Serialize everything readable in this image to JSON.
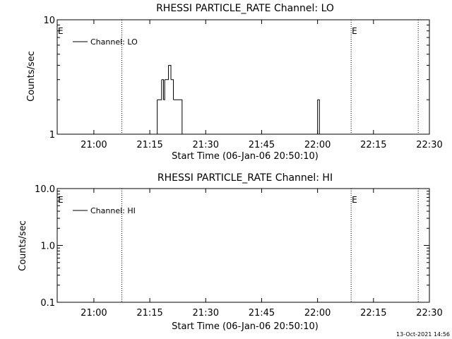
{
  "colors": {
    "background": "#ffffff",
    "foreground": "#000000"
  },
  "timestamp": "13-Oct-2021 14:56",
  "chart_data": [
    {
      "type": "line",
      "title": "RHESSI PARTICLE_RATE Channel: LO",
      "xlabel": "Start Time (06-Jan-06 20:50:10)",
      "ylabel": "Counts/sec",
      "x_ticks": [
        "21:00",
        "21:15",
        "21:30",
        "21:45",
        "22:00",
        "22:15",
        "22:30"
      ],
      "y_ticks": [
        "1",
        "10"
      ],
      "y_scale": "log",
      "ylim": [
        1,
        10
      ],
      "xlim": [
        "20:50:10",
        "22:30:00"
      ],
      "legend": {
        "entries": [
          "Channel: LO"
        ],
        "placement": "top-left"
      },
      "markers": [
        {
          "label": "E",
          "time": "20:50:10"
        },
        {
          "label": "E",
          "time": "22:09:00"
        }
      ],
      "dotted_lines": [
        "21:07:30",
        "22:09:00",
        "22:27:00"
      ],
      "series": [
        {
          "name": "Channel: LO",
          "step": true,
          "points": [
            [
              "21:16:10",
              1
            ],
            [
              "21:17:00",
              2
            ],
            [
              "21:18:10",
              3
            ],
            [
              "21:18:40",
              2
            ],
            [
              "21:19:00",
              3
            ],
            [
              "21:20:00",
              4
            ],
            [
              "21:20:40",
              3
            ],
            [
              "21:21:20",
              2
            ],
            [
              "21:23:40",
              1
            ],
            [
              "22:00:00",
              2
            ],
            [
              "22:00:30",
              1
            ]
          ]
        }
      ]
    },
    {
      "type": "line",
      "title": "RHESSI PARTICLE_RATE Channel: HI",
      "xlabel": "Start Time (06-Jan-06 20:50:10)",
      "ylabel": "Counts/sec",
      "x_ticks": [
        "21:00",
        "21:15",
        "21:30",
        "21:45",
        "22:00",
        "22:15",
        "22:30"
      ],
      "y_ticks": [
        "10.0",
        "1.0",
        "0.1"
      ],
      "y_scale": "log",
      "ylim": [
        0.1,
        10
      ],
      "xlim": [
        "20:50:10",
        "22:30:00"
      ],
      "legend": {
        "entries": [
          "Channel: HI"
        ],
        "placement": "top-left"
      },
      "markers": [
        {
          "label": "E",
          "time": "20:50:10"
        },
        {
          "label": "E",
          "time": "22:09:00"
        }
      ],
      "dotted_lines": [
        "21:07:30",
        "22:09:00",
        "22:27:00"
      ],
      "series": [
        {
          "name": "Channel: HI",
          "step": true,
          "points": []
        }
      ]
    }
  ]
}
